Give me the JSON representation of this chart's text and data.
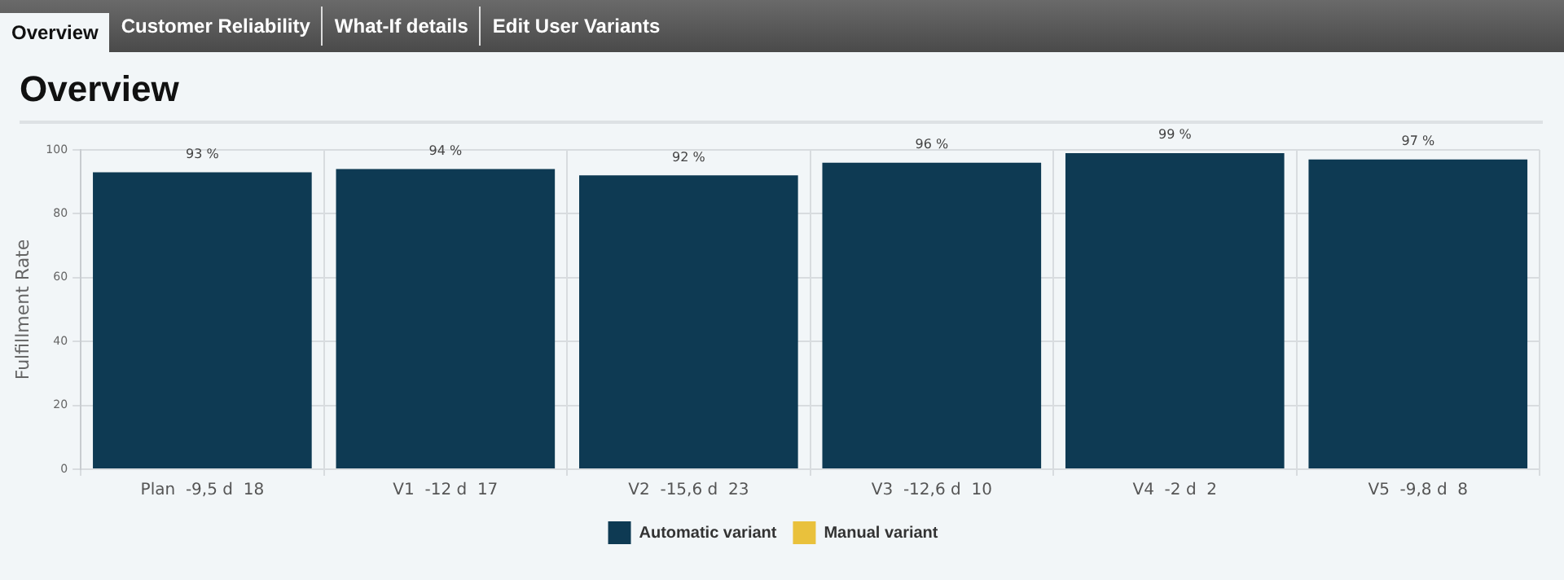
{
  "chart_data": {
    "type": "bar",
    "title": "Overview",
    "ylabel": "Fulfillment Rate",
    "annotations": [
      "Overview",
      "Customer Reliability",
      "What-If details",
      "Edit User Variants"
    ],
    "categories": [
      "Plan  -9,5 d  18",
      "V1  -12 d  17",
      "V2  -15,6 d  23",
      "V3  -12,6 d  10",
      "V4  -2 d  2",
      "V5  -9,8 d  8"
    ],
    "series": [
      {
        "name": "Automatic variant",
        "color": "#0e3a53",
        "values": [
          93,
          94,
          92,
          96,
          99,
          97
        ],
        "value_labels": [
          "93 %",
          "94 %",
          "92 %",
          "96 %",
          "99 %",
          "97 %"
        ]
      },
      {
        "name": "Manual variant",
        "color": "#e9c13c",
        "values": [
          null,
          null,
          null,
          null,
          null,
          null
        ]
      }
    ],
    "ylim": [
      0,
      100
    ],
    "yticks": [
      0,
      20,
      40,
      60,
      80,
      100
    ],
    "grid": true,
    "legend": "bottom"
  }
}
